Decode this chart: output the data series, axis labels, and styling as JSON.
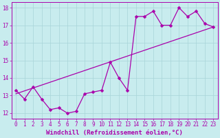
{
  "xlabel": "Windchill (Refroidissement éolien,°C)",
  "bg_color": "#c8ecee",
  "grid_color": "#a8d4d8",
  "line_color": "#aa00aa",
  "xlim": [
    -0.5,
    23.5
  ],
  "ylim": [
    11.7,
    18.3
  ],
  "yticks": [
    12,
    13,
    14,
    15,
    16,
    17,
    18
  ],
  "xticks": [
    0,
    1,
    2,
    3,
    4,
    5,
    6,
    7,
    8,
    9,
    10,
    11,
    12,
    13,
    14,
    15,
    16,
    17,
    18,
    19,
    20,
    21,
    22,
    23
  ],
  "line1_x": [
    0,
    1,
    2,
    3,
    4,
    5,
    6,
    7,
    8,
    9,
    10,
    11,
    12,
    13,
    14,
    15,
    16,
    17,
    18,
    19,
    20,
    21,
    22,
    23
  ],
  "line1_y": [
    13.3,
    12.8,
    13.5,
    12.8,
    12.2,
    12.3,
    12.0,
    12.1,
    13.1,
    13.2,
    13.3,
    14.9,
    14.0,
    13.3,
    17.5,
    17.5,
    17.8,
    17.0,
    17.0,
    18.0,
    17.5,
    17.8,
    17.1,
    16.9
  ],
  "trend_x": [
    0,
    23
  ],
  "trend_y": [
    13.1,
    16.9
  ],
  "xlabel_fontsize": 6.5,
  "tick_fontsize": 5.5,
  "marker_size": 2.5,
  "linewidth": 0.9
}
